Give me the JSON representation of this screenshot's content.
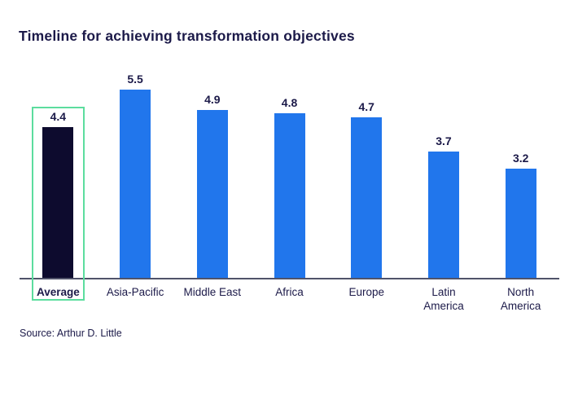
{
  "title": "Timeline for achieving transformation objectives",
  "source": "Source: Arthur D. Little",
  "colors": {
    "bar_default": "#2176ec",
    "bar_highlight": "#0d0b2e",
    "highlight_outline": "#5cdd9e",
    "text": "#1c1a49",
    "axis": "#50536a",
    "background": "#ffffff"
  },
  "chart_data": {
    "type": "bar",
    "title": "Timeline for achieving transformation objectives",
    "categories": [
      "Average",
      "Asia-Pacific",
      "Middle East",
      "Africa",
      "Europe",
      "Latin\nAmerica",
      "North\nAmerica"
    ],
    "values": [
      4.4,
      5.5,
      4.9,
      4.8,
      4.7,
      3.7,
      3.2
    ],
    "value_labels": [
      "4.4",
      "5.5",
      "4.9",
      "4.8",
      "4.7",
      "3.7",
      "3.2"
    ],
    "highlight_index": 0,
    "highlighted_category": "Average",
    "xlabel": "",
    "ylabel": "",
    "ylim": [
      0,
      6
    ],
    "grid": false,
    "legend": false,
    "value_labels_shown": true,
    "source": "Source: Arthur D. Little"
  }
}
